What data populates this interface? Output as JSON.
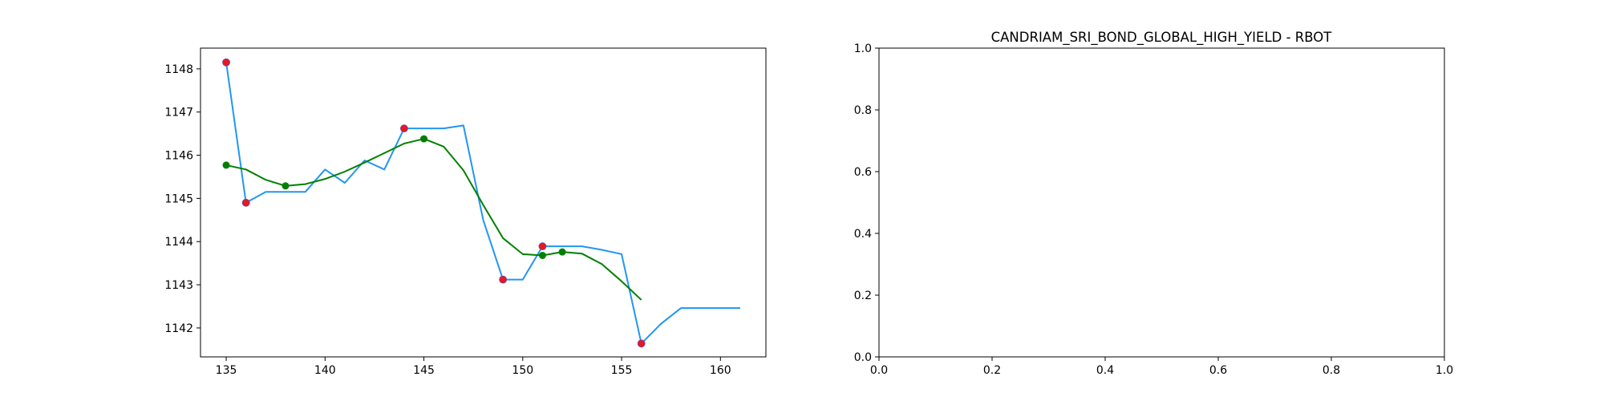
{
  "chart_data": [
    {
      "type": "line",
      "title": "",
      "xlabel": "",
      "ylabel": "",
      "xlim": [
        133.7,
        162.3
      ],
      "ylim": [
        1141.33,
        1148.48
      ],
      "grid": false,
      "xticks": [
        135,
        140,
        145,
        150,
        155,
        160
      ],
      "yticks": [
        1142,
        1143,
        1144,
        1145,
        1146,
        1147,
        1148
      ],
      "colors": {
        "price": "#2196f3",
        "smooth": "#008000",
        "price_markers": "#e41a1c",
        "smooth_markers": "#008000"
      },
      "series": [
        {
          "kind": "line",
          "x": [
            135,
            136,
            137,
            138,
            139,
            140,
            141,
            142,
            143,
            144,
            145,
            146,
            147,
            148,
            149,
            150,
            151,
            152,
            153,
            154,
            155,
            156,
            157,
            158,
            159,
            160,
            161
          ],
          "y": [
            1148.15,
            1144.9,
            1145.15,
            1145.15,
            1145.15,
            1145.67,
            1145.36,
            1145.88,
            1145.67,
            1146.62,
            1146.62,
            1146.62,
            1146.69,
            1144.5,
            1143.12,
            1143.12,
            1143.89,
            1143.89,
            1143.89,
            1143.81,
            1143.71,
            1141.64,
            1142.1,
            1142.46,
            1142.46,
            1142.46,
            1142.46
          ]
        },
        {
          "kind": "line",
          "x": [
            135,
            136,
            137,
            138,
            139,
            140,
            141,
            142,
            143,
            144,
            145,
            146,
            147,
            148,
            149,
            150,
            151,
            152,
            153,
            154,
            155,
            156
          ],
          "y": [
            1145.77,
            1145.67,
            1145.43,
            1145.29,
            1145.33,
            1145.45,
            1145.62,
            1145.83,
            1146.05,
            1146.27,
            1146.38,
            1146.2,
            1145.65,
            1144.85,
            1144.08,
            1143.71,
            1143.68,
            1143.76,
            1143.72,
            1143.48,
            1143.08,
            1142.65
          ]
        },
        {
          "kind": "scatter",
          "x": [
            135,
            136,
            144,
            149,
            151,
            156
          ],
          "y": [
            1148.15,
            1144.9,
            1146.62,
            1143.12,
            1143.89,
            1141.64
          ]
        },
        {
          "kind": "scatter",
          "x": [
            135,
            138,
            145,
            151,
            152
          ],
          "y": [
            1145.77,
            1145.29,
            1146.38,
            1143.68,
            1143.76
          ]
        }
      ]
    },
    {
      "type": "line",
      "title": "CANDRIAM_SRI_BOND_GLOBAL_HIGH_YIELD - RBOT",
      "xlabel": "",
      "ylabel": "",
      "xlim": [
        0,
        1
      ],
      "ylim": [
        0,
        1
      ],
      "grid": false,
      "xticks": [
        0.0,
        0.2,
        0.4,
        0.6,
        0.8,
        1.0
      ],
      "yticks": [
        0.0,
        0.2,
        0.4,
        0.6,
        0.8,
        1.0
      ],
      "xtick_labels": [
        "0.0",
        "0.2",
        "0.4",
        "0.6",
        "0.8",
        "1.0"
      ],
      "ytick_labels": [
        "0.0",
        "0.2",
        "0.4",
        "0.6",
        "0.8",
        "1.0"
      ],
      "series": []
    }
  ]
}
